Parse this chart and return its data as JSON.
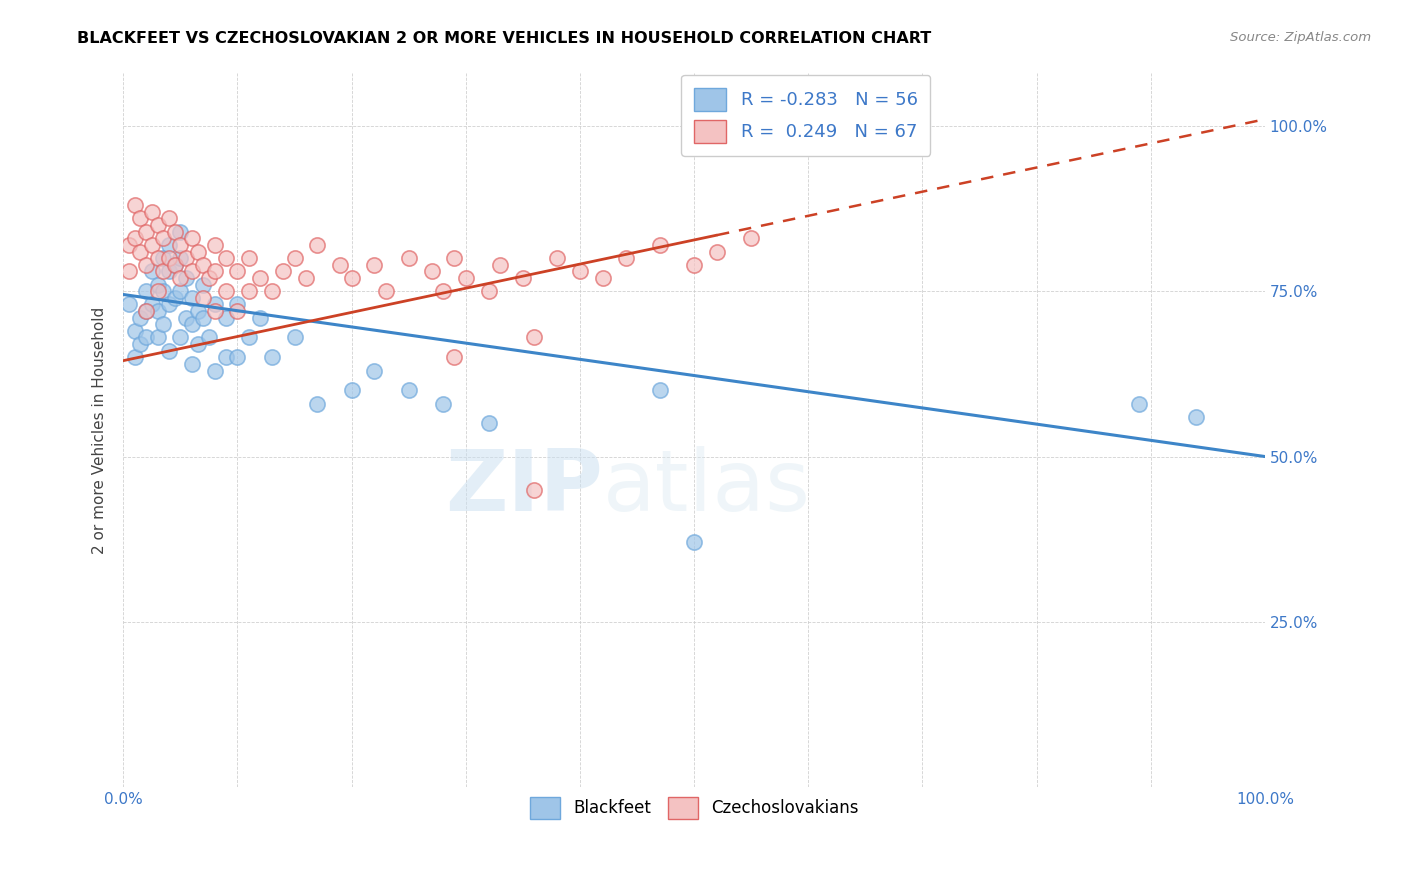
{
  "title": "BLACKFEET VS CZECHOSLOVAKIAN 2 OR MORE VEHICLES IN HOUSEHOLD CORRELATION CHART",
  "source": "Source: ZipAtlas.com",
  "ylabel": "2 or more Vehicles in Household",
  "xlim": [
    0,
    1
  ],
  "ylim": [
    0,
    1.08
  ],
  "yticks": [
    0.0,
    0.25,
    0.5,
    0.75,
    1.0
  ],
  "ytick_labels": [
    "",
    "25.0%",
    "50.0%",
    "75.0%",
    "100.0%"
  ],
  "xticks": [
    0.0,
    0.1,
    0.2,
    0.3,
    0.4,
    0.5,
    0.6,
    0.7,
    0.8,
    0.9,
    1.0
  ],
  "legend_r1": "R = -0.283",
  "legend_n1": "N = 56",
  "legend_r2": "R =  0.249",
  "legend_n2": "N = 67",
  "blue_color": "#9fc5e8",
  "blue_edge_color": "#6fa8dc",
  "pink_color": "#f4c2c2",
  "pink_edge_color": "#e06666",
  "blue_line_color": "#3d85c8",
  "pink_line_color": "#cc4125",
  "watermark_zip": "ZIP",
  "watermark_atlas": "atlas",
  "blackfeet_x": [
    0.005,
    0.01,
    0.01,
    0.015,
    0.015,
    0.02,
    0.02,
    0.02,
    0.025,
    0.025,
    0.03,
    0.03,
    0.03,
    0.035,
    0.035,
    0.035,
    0.04,
    0.04,
    0.04,
    0.04,
    0.045,
    0.045,
    0.05,
    0.05,
    0.05,
    0.05,
    0.055,
    0.055,
    0.06,
    0.06,
    0.06,
    0.065,
    0.065,
    0.07,
    0.07,
    0.075,
    0.08,
    0.08,
    0.09,
    0.09,
    0.1,
    0.1,
    0.11,
    0.12,
    0.13,
    0.15,
    0.17,
    0.2,
    0.22,
    0.25,
    0.28,
    0.32,
    0.47,
    0.5,
    0.89,
    0.94
  ],
  "blackfeet_y": [
    0.73,
    0.69,
    0.65,
    0.71,
    0.67,
    0.75,
    0.72,
    0.68,
    0.78,
    0.73,
    0.76,
    0.72,
    0.68,
    0.8,
    0.75,
    0.7,
    0.82,
    0.78,
    0.73,
    0.66,
    0.79,
    0.74,
    0.84,
    0.8,
    0.75,
    0.68,
    0.77,
    0.71,
    0.74,
    0.7,
    0.64,
    0.72,
    0.67,
    0.76,
    0.71,
    0.68,
    0.73,
    0.63,
    0.71,
    0.65,
    0.73,
    0.65,
    0.68,
    0.71,
    0.65,
    0.68,
    0.58,
    0.6,
    0.63,
    0.6,
    0.58,
    0.55,
    0.6,
    0.37,
    0.58,
    0.56
  ],
  "czech_x": [
    0.005,
    0.005,
    0.01,
    0.01,
    0.015,
    0.015,
    0.02,
    0.02,
    0.02,
    0.025,
    0.025,
    0.03,
    0.03,
    0.03,
    0.035,
    0.035,
    0.04,
    0.04,
    0.045,
    0.045,
    0.05,
    0.05,
    0.055,
    0.06,
    0.06,
    0.065,
    0.07,
    0.07,
    0.075,
    0.08,
    0.08,
    0.08,
    0.09,
    0.09,
    0.1,
    0.1,
    0.11,
    0.11,
    0.12,
    0.13,
    0.14,
    0.15,
    0.16,
    0.17,
    0.19,
    0.2,
    0.22,
    0.23,
    0.25,
    0.27,
    0.28,
    0.29,
    0.3,
    0.32,
    0.33,
    0.35,
    0.36,
    0.38,
    0.4,
    0.42,
    0.44,
    0.47,
    0.5,
    0.52,
    0.55,
    0.36,
    0.29
  ],
  "czech_y": [
    0.82,
    0.78,
    0.88,
    0.83,
    0.86,
    0.81,
    0.84,
    0.79,
    0.72,
    0.87,
    0.82,
    0.85,
    0.8,
    0.75,
    0.83,
    0.78,
    0.86,
    0.8,
    0.84,
    0.79,
    0.82,
    0.77,
    0.8,
    0.83,
    0.78,
    0.81,
    0.79,
    0.74,
    0.77,
    0.82,
    0.78,
    0.72,
    0.8,
    0.75,
    0.78,
    0.72,
    0.8,
    0.75,
    0.77,
    0.75,
    0.78,
    0.8,
    0.77,
    0.82,
    0.79,
    0.77,
    0.79,
    0.75,
    0.8,
    0.78,
    0.75,
    0.8,
    0.77,
    0.75,
    0.79,
    0.77,
    0.45,
    0.8,
    0.78,
    0.77,
    0.8,
    0.82,
    0.79,
    0.81,
    0.83,
    0.68,
    0.65
  ]
}
